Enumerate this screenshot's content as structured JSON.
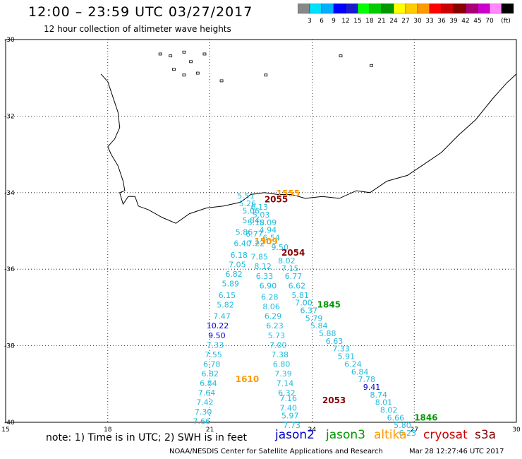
{
  "title": "12:00 – 23:59 UTC 03/27/2017",
  "subtitle": "12 hour collection of altimeter wave heights",
  "color_scale": {
    "colors": [
      "#888888",
      "#00e0ff",
      "#00b0ff",
      "#0000ff",
      "#1a1ad0",
      "#00ff00",
      "#00cc00",
      "#009900",
      "#ffff00",
      "#ffcc00",
      "#ff9900",
      "#ff0000",
      "#cc0000",
      "#880000",
      "#aa0077",
      "#cc00cc",
      "#ff88ff",
      "#000000"
    ],
    "labels": [
      "3",
      "6",
      "9",
      "12",
      "15",
      "18",
      "21",
      "24",
      "27",
      "30",
      "33",
      "36",
      "39",
      "42",
      "45",
      "70",
      "(ft)"
    ]
  },
  "axes": {
    "lon_ticks": [
      "15",
      "18",
      "21",
      "24",
      "27",
      "30"
    ],
    "lat_ticks": [
      "-30",
      "-32",
      "-34",
      "-36",
      "-38",
      "-40"
    ]
  },
  "wave_labels": [
    {
      "t": "5.51",
      "c": "#22bbdd",
      "lon": 21.8,
      "lat": -34.15
    },
    {
      "t": "5.26",
      "c": "#22bbdd",
      "lon": 21.85,
      "lat": -34.35
    },
    {
      "t": "6.13",
      "c": "#22bbdd",
      "lon": 22.2,
      "lat": -34.45
    },
    {
      "t": "5.06",
      "c": "#22bbdd",
      "lon": 21.95,
      "lat": -34.55
    },
    {
      "t": "5.03",
      "c": "#22bbdd",
      "lon": 22.25,
      "lat": -34.65
    },
    {
      "t": "5.84",
      "c": "#22bbdd",
      "lon": 21.95,
      "lat": -34.8
    },
    {
      "t": "5.18",
      "c": "#22bbdd",
      "lon": 22.1,
      "lat": -34.85
    },
    {
      "t": "5.09",
      "c": "#22bbdd",
      "lon": 22.45,
      "lat": -34.85
    },
    {
      "t": "5.86",
      "c": "#22bbdd",
      "lon": 21.75,
      "lat": -35.1
    },
    {
      "t": "6.77",
      "c": "#22bbdd",
      "lon": 22.05,
      "lat": -35.15
    },
    {
      "t": "4.94",
      "c": "#22bbdd",
      "lon": 22.45,
      "lat": -35.05
    },
    {
      "t": "6.54",
      "c": "#22bbdd",
      "lon": 22.55,
      "lat": -35.25
    },
    {
      "t": "6.40",
      "c": "#22bbdd",
      "lon": 21.7,
      "lat": -35.4
    },
    {
      "t": "7.22",
      "c": "#22bbdd",
      "lon": 22.1,
      "lat": -35.4
    },
    {
      "t": "9.50",
      "c": "#22bbdd",
      "lon": 22.8,
      "lat": -35.5
    },
    {
      "t": "6.18",
      "c": "#22bbdd",
      "lon": 21.6,
      "lat": -35.7
    },
    {
      "t": "7.85",
      "c": "#22bbdd",
      "lon": 22.2,
      "lat": -35.75
    },
    {
      "t": "8.02",
      "c": "#22bbdd",
      "lon": 23.0,
      "lat": -35.85
    },
    {
      "t": "7.05",
      "c": "#22bbdd",
      "lon": 21.55,
      "lat": -35.95
    },
    {
      "t": "8.12",
      "c": "#22bbdd",
      "lon": 22.3,
      "lat": -36.0
    },
    {
      "t": "7.15",
      "c": "#22bbdd",
      "lon": 23.1,
      "lat": -36.05
    },
    {
      "t": "6.82",
      "c": "#22bbdd",
      "lon": 21.45,
      "lat": -36.2
    },
    {
      "t": "6.33",
      "c": "#22bbdd",
      "lon": 22.35,
      "lat": -36.25
    },
    {
      "t": "6.77",
      "c": "#22bbdd",
      "lon": 23.2,
      "lat": -36.25
    },
    {
      "t": "5.89",
      "c": "#22bbdd",
      "lon": 21.35,
      "lat": -36.45
    },
    {
      "t": "6.90",
      "c": "#22bbdd",
      "lon": 22.45,
      "lat": -36.5
    },
    {
      "t": "6.62",
      "c": "#22bbdd",
      "lon": 23.3,
      "lat": -36.5
    },
    {
      "t": "6.15",
      "c": "#22bbdd",
      "lon": 21.25,
      "lat": -36.75
    },
    {
      "t": "6.28",
      "c": "#22bbdd",
      "lon": 22.5,
      "lat": -36.8
    },
    {
      "t": "5.81",
      "c": "#22bbdd",
      "lon": 23.4,
      "lat": -36.75
    },
    {
      "t": "5.82",
      "c": "#22bbdd",
      "lon": 21.2,
      "lat": -37.0
    },
    {
      "t": "8.06",
      "c": "#22bbdd",
      "lon": 22.55,
      "lat": -37.05
    },
    {
      "t": "7.00",
      "c": "#22bbdd",
      "lon": 23.5,
      "lat": -36.95
    },
    {
      "t": "6.37",
      "c": "#22bbdd",
      "lon": 23.65,
      "lat": -37.15
    },
    {
      "t": "7.47",
      "c": "#22bbdd",
      "lon": 21.1,
      "lat": -37.3
    },
    {
      "t": "6.29",
      "c": "#22bbdd",
      "lon": 22.6,
      "lat": -37.3
    },
    {
      "t": "5.79",
      "c": "#22bbdd",
      "lon": 23.8,
      "lat": -37.35
    },
    {
      "t": "10.22",
      "c": "#0000cc",
      "lon": 20.9,
      "lat": -37.55
    },
    {
      "t": "6.23",
      "c": "#22bbdd",
      "lon": 22.65,
      "lat": -37.55
    },
    {
      "t": "5.84",
      "c": "#22bbdd",
      "lon": 23.95,
      "lat": -37.55
    },
    {
      "t": "9.50",
      "c": "#0000cc",
      "lon": 20.95,
      "lat": -37.8
    },
    {
      "t": "5.73",
      "c": "#22bbdd",
      "lon": 22.7,
      "lat": -37.8
    },
    {
      "t": "5.88",
      "c": "#22bbdd",
      "lon": 24.2,
      "lat": -37.75
    },
    {
      "t": "7.33",
      "c": "#22bbdd",
      "lon": 20.9,
      "lat": -38.05
    },
    {
      "t": "7.00",
      "c": "#22bbdd",
      "lon": 22.75,
      "lat": -38.05
    },
    {
      "t": "6.63",
      "c": "#22bbdd",
      "lon": 24.4,
      "lat": -37.95
    },
    {
      "t": "7.33",
      "c": "#22bbdd",
      "lon": 24.6,
      "lat": -38.15
    },
    {
      "t": "7.55",
      "c": "#22bbdd",
      "lon": 20.85,
      "lat": -38.3
    },
    {
      "t": "7.38",
      "c": "#22bbdd",
      "lon": 22.8,
      "lat": -38.3
    },
    {
      "t": "5.91",
      "c": "#22bbdd",
      "lon": 24.75,
      "lat": -38.35
    },
    {
      "t": "6.78",
      "c": "#22bbdd",
      "lon": 20.8,
      "lat": -38.55
    },
    {
      "t": "6.80",
      "c": "#22bbdd",
      "lon": 22.85,
      "lat": -38.55
    },
    {
      "t": "6.24",
      "c": "#22bbdd",
      "lon": 24.95,
      "lat": -38.55
    },
    {
      "t": "6.82",
      "c": "#22bbdd",
      "lon": 20.75,
      "lat": -38.8
    },
    {
      "t": "7.39",
      "c": "#22bbdd",
      "lon": 22.9,
      "lat": -38.8
    },
    {
      "t": "6.84",
      "c": "#22bbdd",
      "lon": 25.15,
      "lat": -38.75
    },
    {
      "t": "7.78",
      "c": "#22bbdd",
      "lon": 25.35,
      "lat": -38.95
    },
    {
      "t": "6.84",
      "c": "#22bbdd",
      "lon": 20.7,
      "lat": -39.05
    },
    {
      "t": "7.14",
      "c": "#22bbdd",
      "lon": 22.95,
      "lat": -39.05
    },
    {
      "t": "9.41",
      "c": "#0000cc",
      "lon": 25.5,
      "lat": -39.15
    },
    {
      "t": "8.74",
      "c": "#22bbdd",
      "lon": 25.7,
      "lat": -39.35
    },
    {
      "t": "7.64",
      "c": "#22bbdd",
      "lon": 20.65,
      "lat": -39.3
    },
    {
      "t": "6.32",
      "c": "#22bbdd",
      "lon": 23.0,
      "lat": -39.3
    },
    {
      "t": "7.42",
      "c": "#22bbdd",
      "lon": 20.6,
      "lat": -39.55
    },
    {
      "t": "7.16",
      "c": "#22bbdd",
      "lon": 23.05,
      "lat": -39.45
    },
    {
      "t": "8.01",
      "c": "#22bbdd",
      "lon": 25.85,
      "lat": -39.55
    },
    {
      "t": "7.40",
      "c": "#22bbdd",
      "lon": 23.05,
      "lat": -39.7
    },
    {
      "t": "8.02",
      "c": "#22bbdd",
      "lon": 26.0,
      "lat": -39.75
    },
    {
      "t": "7.30",
      "c": "#22bbdd",
      "lon": 20.55,
      "lat": -39.8
    },
    {
      "t": "5.97",
      "c": "#22bbdd",
      "lon": 23.1,
      "lat": -39.9
    },
    {
      "t": "6.66",
      "c": "#22bbdd",
      "lon": 26.2,
      "lat": -39.95
    },
    {
      "t": "7.66",
      "c": "#22bbdd",
      "lon": 20.5,
      "lat": -40.05
    },
    {
      "t": "7.73",
      "c": "#22bbdd",
      "lon": 23.15,
      "lat": -40.15
    },
    {
      "t": "5.80",
      "c": "#22bbdd",
      "lon": 26.4,
      "lat": -40.15
    },
    {
      "t": "6.23",
      "c": "#22bbdd",
      "lon": 26.55,
      "lat": -40.35
    }
  ],
  "time_labels": [
    {
      "t": "2055",
      "c": "#880000",
      "lon": 22.6,
      "lat": -34.25
    },
    {
      "t": "1555",
      "c": "#ff9900",
      "lon": 22.95,
      "lat": -34.1
    },
    {
      "t": "1509",
      "c": "#ff9900",
      "lon": 22.3,
      "lat": -35.35
    },
    {
      "t": "2054",
      "c": "#880000",
      "lon": 23.1,
      "lat": -35.65
    },
    {
      "t": "1845",
      "c": "#009900",
      "lon": 24.15,
      "lat": -37.0
    },
    {
      "t": "1610",
      "c": "#ff9900",
      "lon": 21.75,
      "lat": -38.95
    },
    {
      "t": "2053",
      "c": "#880000",
      "lon": 24.3,
      "lat": -39.5
    },
    {
      "t": "1846",
      "c": "#009900",
      "lon": 27.0,
      "lat": -39.95
    }
  ],
  "legend": {
    "note": "note: 1) Time is in UTC; 2) SWH is in feet",
    "satellites": [
      {
        "name": "jason2",
        "color": "#0000cc"
      },
      {
        "name": "jason3",
        "color": "#009900"
      },
      {
        "name": "altika",
        "color": "#ff9900"
      },
      {
        "name": "cryosat",
        "color": "#cc0000"
      },
      {
        "name": "s3a",
        "color": "#880000"
      }
    ]
  },
  "footer": {
    "credit": "NOAA/NESDIS Center for Satellite Applications and Research",
    "timestamp": "Mar 28 12:27:46 UTC 2017"
  }
}
